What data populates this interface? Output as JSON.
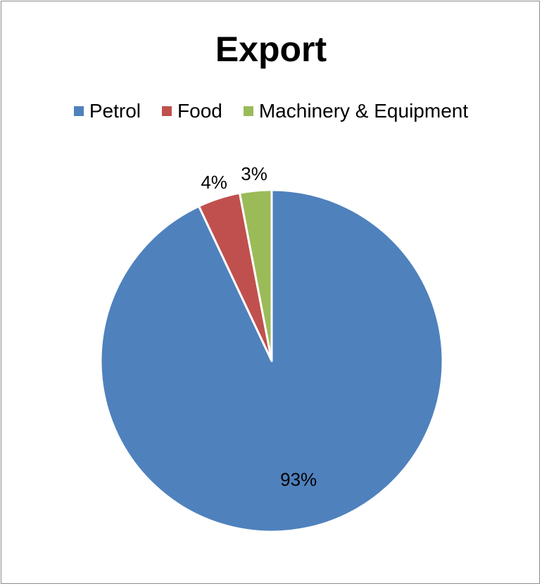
{
  "chart_data": {
    "type": "pie",
    "title": "Export",
    "legend_position": "top",
    "categories": [
      "Petrol",
      "Food",
      "Machinery & Equipment"
    ],
    "values": [
      93,
      4,
      3
    ],
    "labels": [
      "93%",
      "4%",
      "3%"
    ],
    "colors": [
      "#4F81BD",
      "#C0504D",
      "#9BBB59"
    ]
  }
}
